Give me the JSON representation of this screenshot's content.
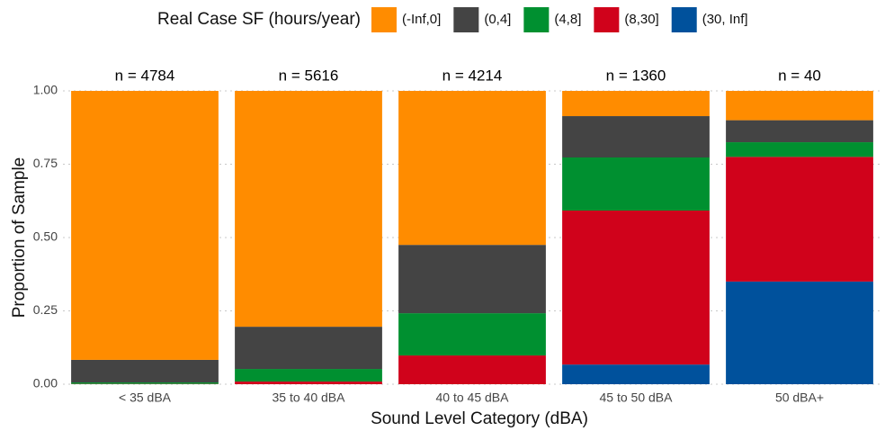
{
  "chart_data": {
    "type": "stacked_bar",
    "legend_title": "Real Case SF (hours/year)",
    "legend_position": "top",
    "x_label": "Sound Level Category (dBA)",
    "y_label": "Proportion of Sample",
    "categories": [
      "< 35 dBA",
      "35 to 40 dBA",
      "40 to 45 dBA",
      "45 to 50 dBA",
      "50 dBA+"
    ],
    "annotations": [
      "n = 4784",
      "n = 5616",
      "n = 4214",
      "n = 1360",
      "n = 40"
    ],
    "series": [
      {
        "name": "(-Inf,0]",
        "color": "#ff8c00",
        "values": [
          0.917,
          0.804,
          0.525,
          0.086,
          0.1
        ]
      },
      {
        "name": "(0,4]",
        "color": "#444444",
        "values": [
          0.077,
          0.144,
          0.233,
          0.141,
          0.075
        ]
      },
      {
        "name": "(4,8]",
        "color": "#009030",
        "values": [
          0.005,
          0.043,
          0.144,
          0.181,
          0.05
        ]
      },
      {
        "name": "(8,30]",
        "color": "#d0021b",
        "values": [
          0.001,
          0.009,
          0.098,
          0.525,
          0.425
        ]
      },
      {
        "name": "(30, Inf]",
        "color": "#00519c",
        "values": [
          0,
          0,
          0,
          0.067,
          0.35
        ]
      }
    ],
    "ylim": [
      0,
      1
    ],
    "yticks": [
      {
        "value": 0,
        "label": "0.00"
      },
      {
        "value": 0.25,
        "label": "0.25"
      },
      {
        "value": 0.5,
        "label": "0.50"
      },
      {
        "value": 0.75,
        "label": "0.75"
      },
      {
        "value": 1,
        "label": "1.00"
      }
    ],
    "grid": true
  }
}
